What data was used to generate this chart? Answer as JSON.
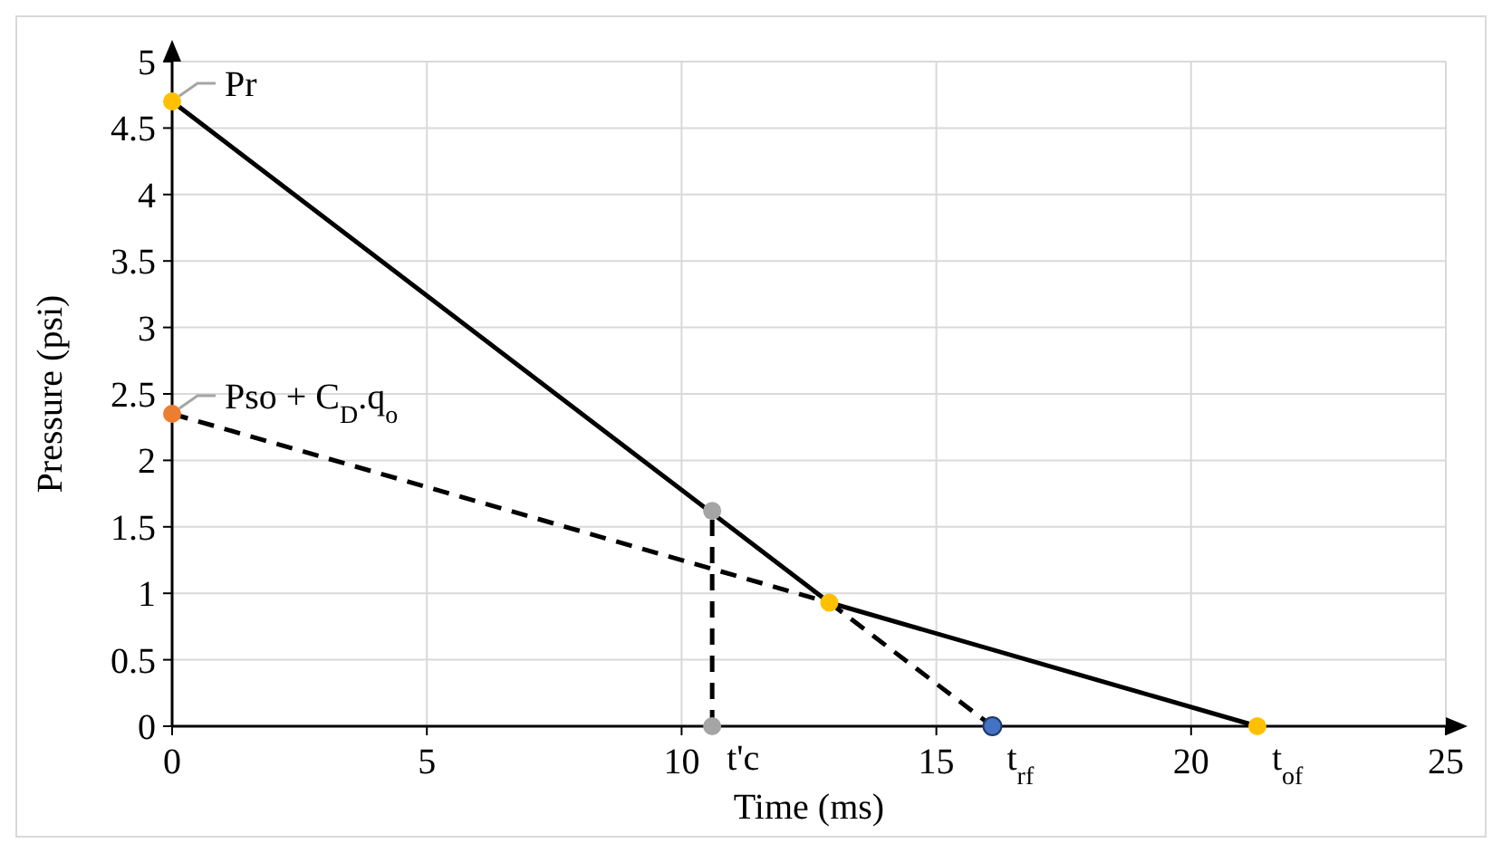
{
  "chart_data": {
    "type": "line",
    "xlabel": "Time (ms)",
    "ylabel": "Pressure (psi)",
    "xlim": [
      0,
      25
    ],
    "xticks": [
      0,
      5,
      10,
      15,
      20,
      25
    ],
    "ylim": [
      0,
      5
    ],
    "yticks": [
      0,
      0.5,
      1,
      1.5,
      2,
      2.5,
      3,
      3.5,
      4,
      4.5,
      5
    ],
    "grid": true,
    "series": [
      {
        "type": "line",
        "color": "#000000",
        "line_style": "solid",
        "marker": "none",
        "x": [
          0,
          12.9,
          21.3
        ],
        "values": [
          4.7,
          0.93,
          0
        ]
      },
      {
        "type": "line",
        "color": "#000000",
        "line_style": "dashed",
        "marker": "none",
        "x": [
          0,
          12.9
        ],
        "values": [
          2.35,
          0.93
        ]
      },
      {
        "type": "line",
        "color": "#000000",
        "line_style": "dashed",
        "marker": "none",
        "x": [
          12.9,
          16.1
        ],
        "values": [
          0.93,
          0
        ]
      },
      {
        "type": "line",
        "color": "#000000",
        "line_style": "dashed",
        "marker": "none",
        "x": [
          10.6,
          10.6
        ],
        "values": [
          0,
          1.62
        ]
      },
      {
        "type": "scatter",
        "marker": "circle",
        "x": [
          0,
          12.9,
          21.3,
          0,
          16.1,
          10.6,
          10.6
        ],
        "values": [
          4.7,
          0.93,
          0,
          2.35,
          0,
          1.62,
          0
        ],
        "colors": [
          "#ffc000",
          "#ffc000",
          "#ffc000",
          "#ed7d31",
          "#4472c4",
          "#a5a5a5",
          "#a5a5a5"
        ]
      }
    ],
    "annotations": [
      {
        "text": "Pr",
        "x": 0,
        "y": 4.7
      },
      {
        "text": "Pso + C$_{D}$.q$_{o}$",
        "x": 0,
        "y": 2.35
      },
      {
        "text": "t'c",
        "x": 10.6,
        "y": 0
      },
      {
        "text": "t$_{rf}$",
        "x": 16.1,
        "y": 0
      },
      {
        "text": "t$_{of}$",
        "x": 21.3,
        "y": 0
      }
    ]
  }
}
